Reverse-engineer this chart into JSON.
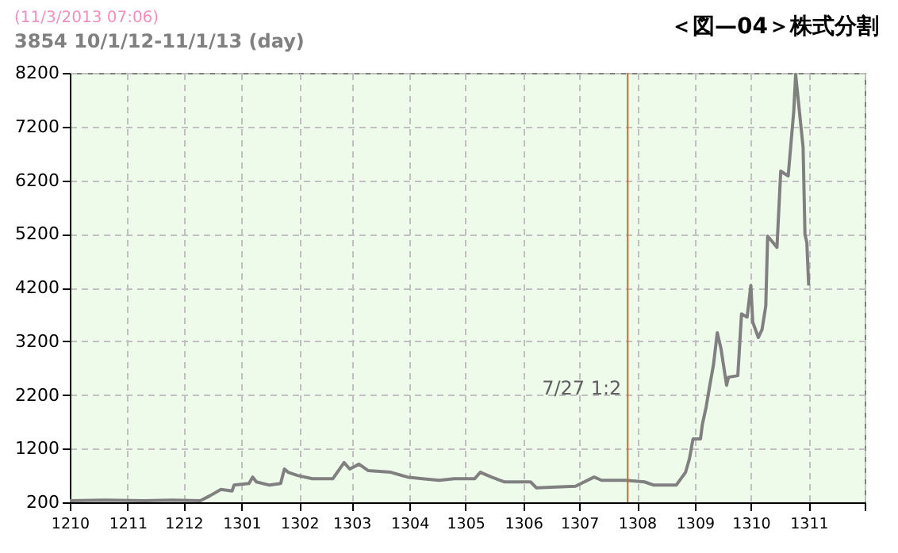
{
  "chart_data": {
    "type": "line",
    "title": "3854 10/1/12-11/1/13 (day)",
    "annotations": [
      "(11/3/2013 07:06)",
      "＜図—04＞株式分割"
    ],
    "x": [
      "2012-10-01",
      "2012-10-20",
      "2012-11-10",
      "2012-11-25",
      "2012-12-10",
      "2012-12-15",
      "2012-12-21",
      "2012-12-27",
      "2012-12-28",
      "2013-01-05",
      "2013-01-07",
      "2013-01-09",
      "2013-01-16",
      "2013-01-22",
      "2013-01-24",
      "2013-01-26",
      "2013-01-31",
      "2013-02-08",
      "2013-02-19",
      "2013-02-25",
      "2013-02-28",
      "2013-03-05",
      "2013-03-10",
      "2013-03-22",
      "2013-03-31",
      "2013-04-08",
      "2013-04-17",
      "2013-04-25",
      "2013-05-06",
      "2013-05-09",
      "2013-05-15",
      "2013-05-22",
      "2013-06-05",
      "2013-06-08",
      "2013-06-29",
      "2013-07-09",
      "2013-07-13",
      "2013-07-26",
      "2013-08-05",
      "2013-08-10",
      "2013-08-22",
      "2013-08-27",
      "2013-08-29",
      "2013-08-31",
      "2013-09-04",
      "2013-09-05",
      "2013-09-07",
      "2013-09-09",
      "2013-09-11",
      "2013-09-13",
      "2013-09-15",
      "2013-09-18",
      "2013-09-19",
      "2013-09-24",
      "2013-09-26",
      "2013-09-29",
      "2013-10-01",
      "2013-10-02",
      "2013-10-05",
      "2013-10-07",
      "2013-10-09",
      "2013-10-10",
      "2013-10-15",
      "2013-10-17",
      "2013-10-21",
      "2013-10-24",
      "2013-10-25",
      "2013-10-27",
      "2013-10-29",
      "2013-10-30",
      "2013-10-31",
      "2013-11-01"
    ],
    "series": [
      {
        "color": "#808080",
        "values": [
          230,
          240,
          230,
          240,
          230,
          320,
          440,
          410,
          520,
          550,
          670,
          580,
          520,
          550,
          820,
          760,
          700,
          640,
          640,
          940,
          820,
          910,
          790,
          760,
          670,
          640,
          610,
          640,
          640,
          760,
          670,
          580,
          580,
          470,
          500,
          670,
          610,
          610,
          580,
          520,
          520,
          760,
          1000,
          1380,
          1380,
          1650,
          1970,
          2380,
          2770,
          3360,
          3060,
          2380,
          2530,
          2560,
          3710,
          3650,
          4240,
          3560,
          3270,
          3420,
          3860,
          5160,
          4950,
          6370,
          6280,
          7490,
          8170,
          7490,
          6810,
          5190,
          5040,
          4240
        ]
      }
    ],
    "xlim": [
      "2012-10-01",
      "2013-12-01"
    ],
    "xticks": [
      {
        "value": "2012-10",
        "label": "1210"
      },
      {
        "value": "2012-11",
        "label": "1211"
      },
      {
        "value": "2012-12",
        "label": "1212"
      },
      {
        "value": "2013-01",
        "label": "1301"
      },
      {
        "value": "2013-02",
        "label": "1302"
      },
      {
        "value": "2013-03",
        "label": "1303"
      },
      {
        "value": "2013-04",
        "label": "1304"
      },
      {
        "value": "2013-05",
        "label": "1305"
      },
      {
        "value": "2013-06",
        "label": "1306"
      },
      {
        "value": "2013-07",
        "label": "1307"
      },
      {
        "value": "2013-08",
        "label": "1308"
      },
      {
        "value": "2013-09",
        "label": "1309"
      },
      {
        "value": "2013-10",
        "label": "1310"
      },
      {
        "value": "2013-11",
        "label": "1311"
      },
      {
        "value": "2013-12",
        "label": null
      }
    ],
    "ylim": [
      200,
      8200
    ],
    "yticks": [
      200,
      1200,
      2200,
      3200,
      4200,
      5200,
      6200,
      7200,
      8200
    ],
    "ref_lines": [
      {
        "axis": "x",
        "value": "2013-07-27",
        "label": "7/27  1:2",
        "color": "#e06020"
      }
    ],
    "grid": true,
    "marker": "none",
    "line_style": "solid"
  }
}
